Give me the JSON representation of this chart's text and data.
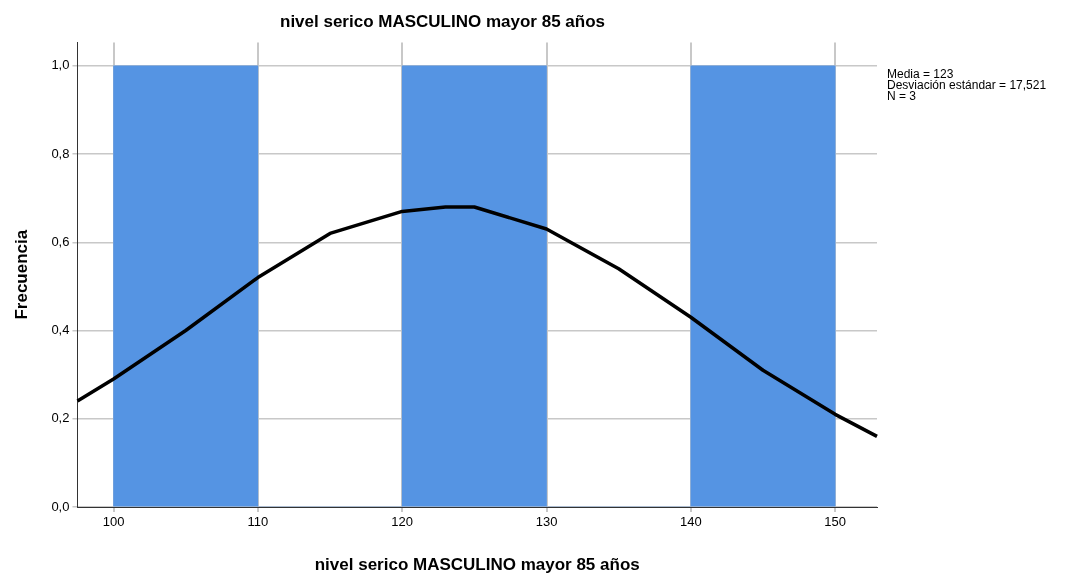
{
  "chart_data": {
    "type": "histogram",
    "title": "nivel serico MASCULINO mayor 85 años",
    "xlabel": "nivel serico MASCULINO mayor 85 años",
    "ylabel": "Frecuencia",
    "bins": [
      100,
      110,
      120,
      130,
      140,
      150
    ],
    "values": [
      1,
      0,
      1,
      0,
      1
    ],
    "color": "#5594e3",
    "series": [
      {
        "type": "line",
        "color": "#000000",
        "x": [
          97.5,
          100,
          105,
          110,
          115,
          120,
          123,
          125,
          130,
          135,
          140,
          145,
          150,
          152.9
        ],
        "values": [
          0.24,
          0.29,
          0.4,
          0.52,
          0.62,
          0.67,
          0.68,
          0.68,
          0.63,
          0.54,
          0.43,
          0.31,
          0.21,
          0.16
        ]
      }
    ],
    "xlim": [
      97.5,
      152.9
    ],
    "xticks": [
      100,
      110,
      120,
      130,
      140,
      150
    ],
    "ylim": [
      0,
      1.053
    ],
    "yticks": [
      {
        "value": 0,
        "label": "0,0"
      },
      {
        "value": 0.2,
        "label": "0,2"
      },
      {
        "value": 0.4,
        "label": "0,4"
      },
      {
        "value": 0.6,
        "label": "0,6"
      },
      {
        "value": 0.8,
        "label": "0,8"
      },
      {
        "value": 1,
        "label": "1,0"
      }
    ],
    "grid": true,
    "legend": false,
    "marker": "none",
    "line_style": "solid",
    "annotations": [
      "Media = 123",
      "Desviación estándar = 17,521",
      "N = 3"
    ]
  }
}
